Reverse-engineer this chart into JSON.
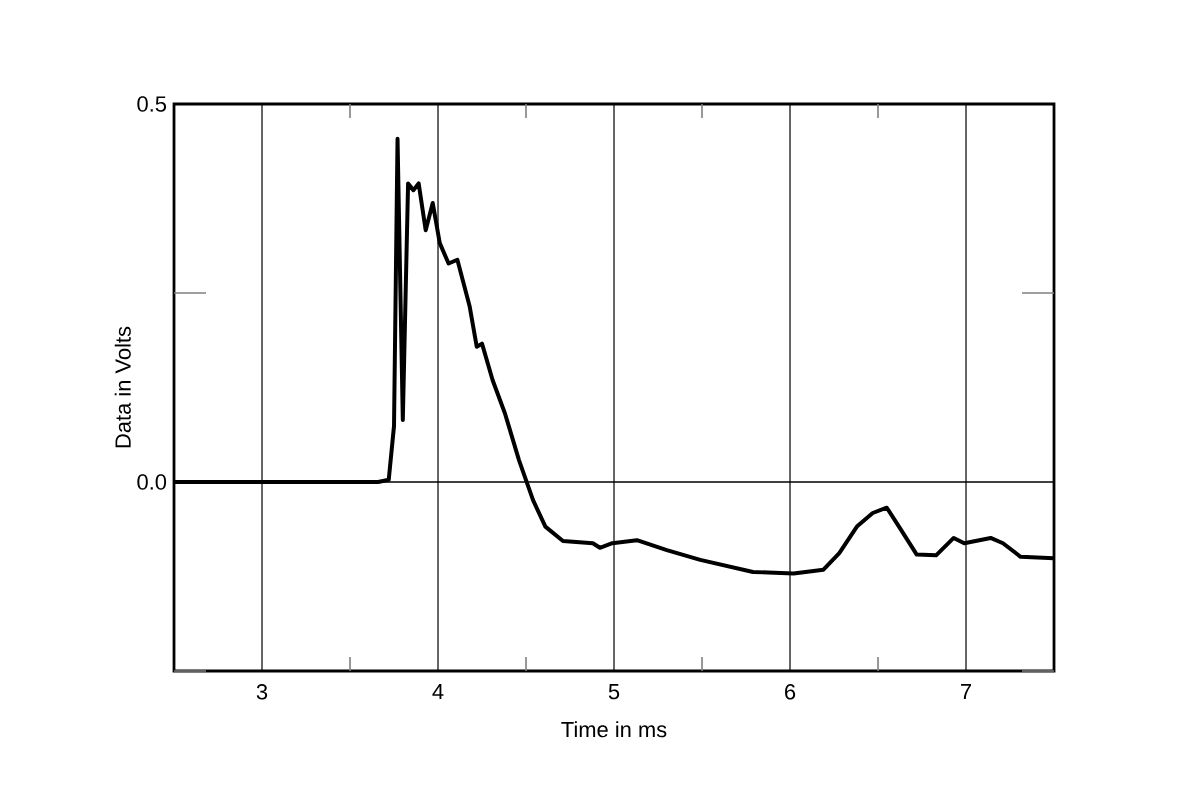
{
  "chart_data": {
    "type": "line",
    "xlabel": "Time in ms",
    "ylabel": "Data in Volts",
    "xlim": [
      2.5,
      7.5
    ],
    "ylim": [
      -0.25,
      0.5
    ],
    "xticks": [
      {
        "value": 3,
        "label": "3"
      },
      {
        "value": 3.5,
        "label": null
      },
      {
        "value": 4,
        "label": "4"
      },
      {
        "value": 4.5,
        "label": null
      },
      {
        "value": 5,
        "label": "5"
      },
      {
        "value": 5.5,
        "label": null
      },
      {
        "value": 6,
        "label": "6"
      },
      {
        "value": 6.5,
        "label": null
      },
      {
        "value": 7,
        "label": "7"
      }
    ],
    "yticks": [
      {
        "value": -0.25,
        "label": null
      },
      {
        "value": 0,
        "label": "0.0"
      },
      {
        "value": 0.25,
        "label": null
      },
      {
        "value": 0.5,
        "label": "0.5"
      }
    ],
    "grid": "x",
    "marker": "none",
    "line_style": "solid",
    "ref_lines": [
      {
        "axis": "y",
        "value": 0
      }
    ],
    "series": [
      {
        "color": "#000000",
        "x": [
          2.5,
          3.0,
          3.5,
          3.66,
          3.72,
          3.75,
          3.77,
          3.8,
          3.83,
          3.86,
          3.89,
          3.93,
          3.97,
          4.01,
          4.06,
          4.11,
          4.18,
          4.22,
          4.25,
          4.31,
          4.38,
          4.46,
          4.54,
          4.61,
          4.71,
          4.88,
          4.92,
          4.99,
          5.13,
          5.3,
          5.49,
          5.79,
          6.02,
          6.19,
          6.28,
          6.38,
          6.47,
          6.55,
          6.63,
          6.72,
          6.83,
          6.93,
          6.99,
          7.14,
          7.21,
          7.31,
          7.5
        ],
        "values": [
          0,
          0,
          0,
          0,
          0.003,
          0.074,
          0.454,
          0.082,
          0.395,
          0.386,
          0.395,
          0.333,
          0.369,
          0.316,
          0.289,
          0.294,
          0.232,
          0.179,
          0.183,
          0.135,
          0.091,
          0.029,
          -0.024,
          -0.059,
          -0.078,
          -0.081,
          -0.087,
          -0.081,
          -0.077,
          -0.09,
          -0.103,
          -0.119,
          -0.121,
          -0.116,
          -0.094,
          -0.059,
          -0.041,
          -0.034,
          -0.063,
          -0.096,
          -0.097,
          -0.074,
          -0.081,
          -0.074,
          -0.081,
          -0.099,
          -0.101
        ]
      }
    ]
  }
}
